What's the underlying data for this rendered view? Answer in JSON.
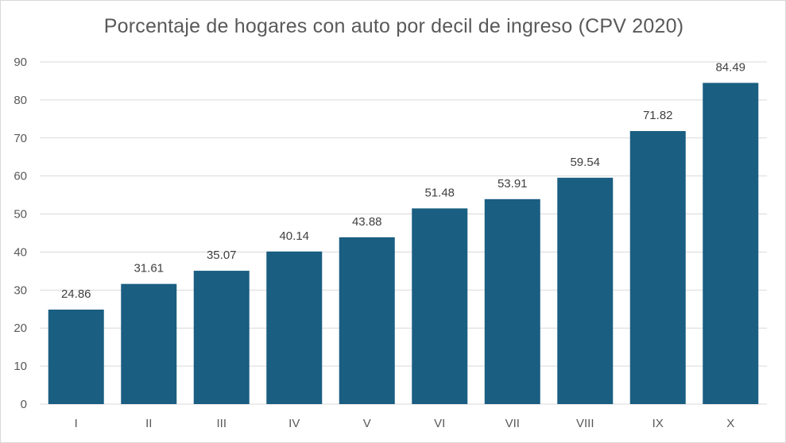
{
  "chart_data": {
    "type": "bar",
    "title": "Porcentaje de hogares con auto por decil de ingreso (CPV 2020)",
    "xlabel": "",
    "ylabel": "",
    "categories": [
      "I",
      "II",
      "III",
      "IV",
      "V",
      "VI",
      "VII",
      "VIII",
      "IX",
      "X"
    ],
    "values": [
      24.86,
      31.61,
      35.07,
      40.14,
      43.88,
      51.48,
      53.91,
      59.54,
      71.82,
      84.49
    ],
    "value_labels": [
      "24.86",
      "31.61",
      "35.07",
      "40.14",
      "43.88",
      "51.48",
      "53.91",
      "59.54",
      "71.82",
      "84.49"
    ],
    "ylim": [
      0,
      90
    ],
    "yticks": [
      0,
      10,
      20,
      30,
      40,
      50,
      60,
      70,
      80,
      90
    ],
    "grid": true,
    "legend": "none",
    "colors": {
      "bar": "#1a5e82",
      "grid": "#d9d9d9",
      "text": "#595959"
    }
  }
}
